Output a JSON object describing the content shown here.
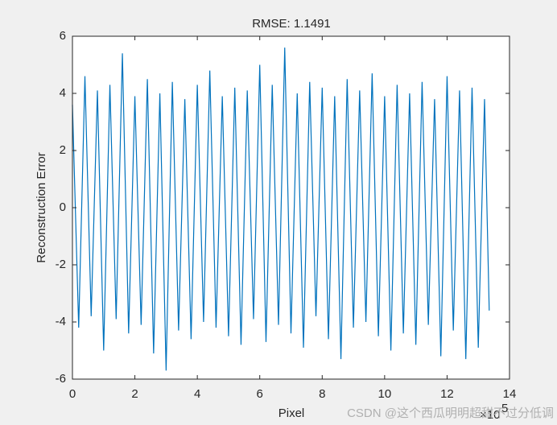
{
  "chart_data": {
    "type": "line",
    "title": "RMSE: 1.1491",
    "x_label": "Pixel",
    "y_label": "Reconstruction Error",
    "x_exponent": {
      "base": "×10",
      "power": "5"
    },
    "watermark": "CSDN @这个西瓜明明超甜不过分低调",
    "color": "#0072bd",
    "x": [
      0,
      0.2,
      0.4,
      0.6,
      0.8,
      1,
      1.2,
      1.4,
      1.6,
      1.8,
      2,
      2.2,
      2.4,
      2.6,
      2.8,
      3,
      3.2,
      3.4,
      3.6,
      3.8,
      4,
      4.2,
      4.4,
      4.6,
      4.8,
      5,
      5.2,
      5.4,
      5.6,
      5.8,
      6,
      6.2,
      6.4,
      6.6,
      6.8,
      7,
      7.2,
      7.4,
      7.6,
      7.8,
      8,
      8.2,
      8.4,
      8.6,
      8.8,
      9,
      9.2,
      9.4,
      9.6,
      9.8,
      10,
      10.2,
      10.4,
      10.6,
      10.8,
      11,
      11.2,
      11.4,
      11.6,
      11.8,
      12,
      12.2,
      12.4,
      12.6,
      12.8,
      13,
      13.2,
      13.35
    ],
    "values": [
      3.6,
      -4.2,
      4.6,
      -3.8,
      4.1,
      -5.0,
      4.3,
      -3.9,
      5.4,
      -4.4,
      3.9,
      -4.1,
      4.5,
      -5.1,
      4.0,
      -5.7,
      4.4,
      -4.3,
      3.8,
      -4.6,
      4.3,
      -4.0,
      4.8,
      -4.2,
      3.9,
      -4.5,
      4.2,
      -4.8,
      4.1,
      -3.9,
      5.0,
      -4.7,
      4.3,
      -4.1,
      5.6,
      -4.4,
      4.0,
      -4.9,
      4.4,
      -3.8,
      4.2,
      -4.6,
      3.9,
      -5.3,
      4.5,
      -4.2,
      4.1,
      -4.0,
      4.7,
      -4.5,
      3.9,
      -5.0,
      4.3,
      -4.4,
      4.0,
      -4.8,
      4.4,
      -4.1,
      3.8,
      -5.2,
      4.6,
      -4.3,
      4.1,
      -5.3,
      4.2,
      -4.9,
      3.8,
      -3.6
    ],
    "xlim": [
      0,
      14
    ],
    "xticks": [
      0,
      2,
      4,
      6,
      8,
      10,
      12,
      14
    ],
    "ylim": [
      -6,
      6
    ],
    "yticks": [
      -6,
      -4,
      -2,
      0,
      2,
      4,
      6
    ]
  }
}
